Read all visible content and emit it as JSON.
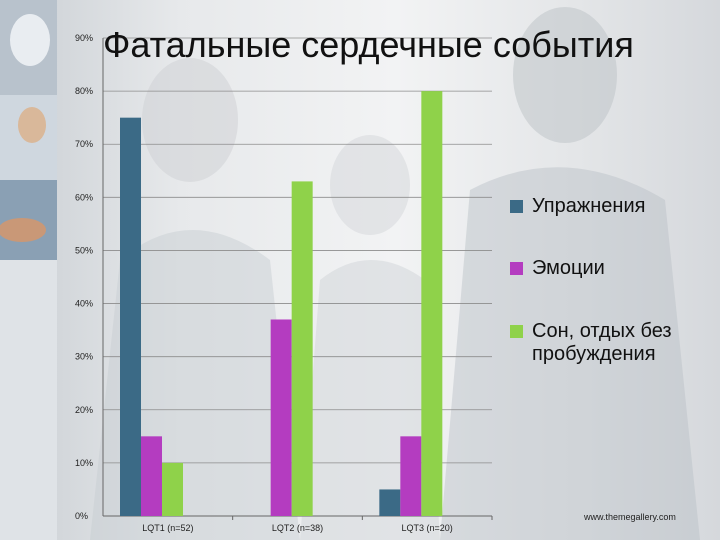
{
  "title": "Фатальные сердечные события",
  "footer": "www.themegallery.com",
  "colors": {
    "series0": "#3b6a86",
    "series1": "#b43cc0",
    "series2": "#8fd24a",
    "grid": "#8c8c8c"
  },
  "chart_data": {
    "type": "bar",
    "categories": [
      "LQT1 (n=52)",
      "LQT2 (n=38)",
      "LQT3 (n=20)"
    ],
    "series": [
      {
        "name": "Упражнения",
        "values": [
          75,
          0,
          5
        ]
      },
      {
        "name": "Эмоции",
        "values": [
          15,
          37,
          15
        ]
      },
      {
        "name": "Сон, отдых без пробуждения",
        "values": [
          10,
          63,
          80
        ]
      }
    ],
    "yticks": [
      "0%",
      "10%",
      "20%",
      "30%",
      "40%",
      "50%",
      "60%",
      "70%",
      "80%",
      "90%"
    ],
    "ylim": [
      0,
      90
    ],
    "grid": true,
    "legend_position": "right"
  }
}
